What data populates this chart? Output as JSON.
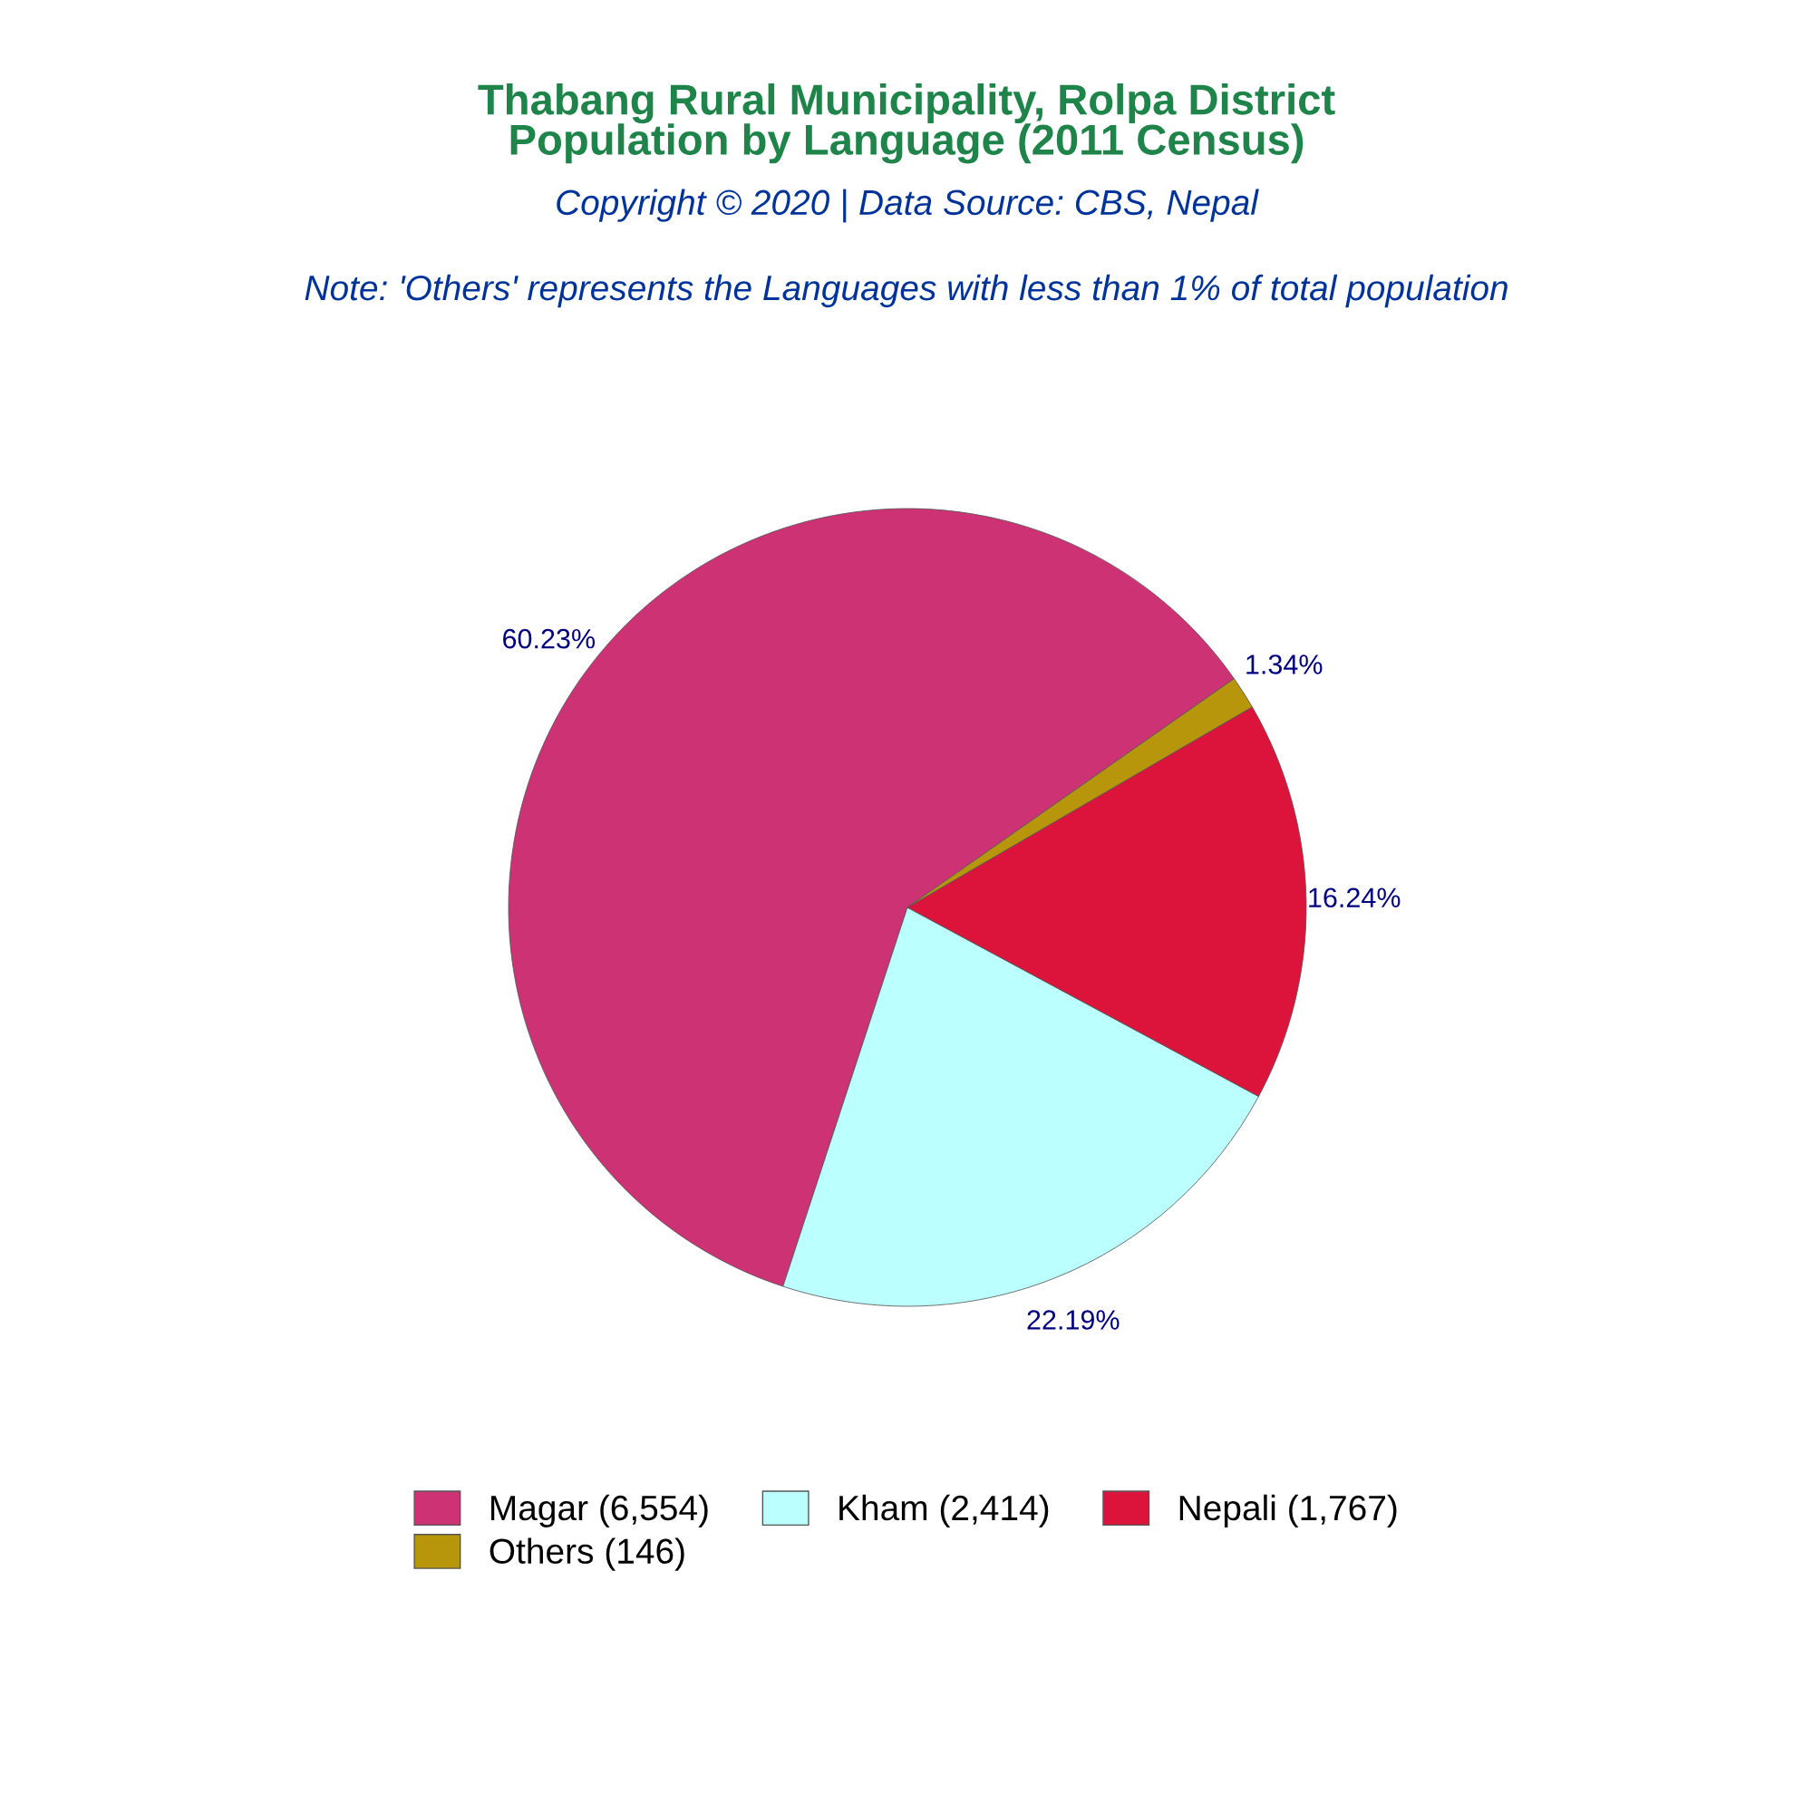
{
  "chart_data": {
    "type": "pie",
    "title": "Thabang Rural Municipality, Rolpa District\nPopulation by Language (2011 Census)",
    "subtitle": "Copyright © 2020 | Data Source: CBS, Nepal",
    "annotations": [
      "Note: 'Others' represents the Languages with less than 1% of total population"
    ],
    "categories": [
      "Magar (6,554)",
      "Kham (2,414)",
      "Nepali (1,767)",
      "Others (146)"
    ],
    "values": [
      60.23,
      22.19,
      16.24,
      1.34
    ],
    "colors": [
      "#cd3275",
      "#bbffff",
      "#dc143c",
      "#b8960c"
    ],
    "value_labels": [
      "60.23%",
      "22.19%",
      "16.24%",
      "1.34%"
    ],
    "legend": "bottom"
  }
}
